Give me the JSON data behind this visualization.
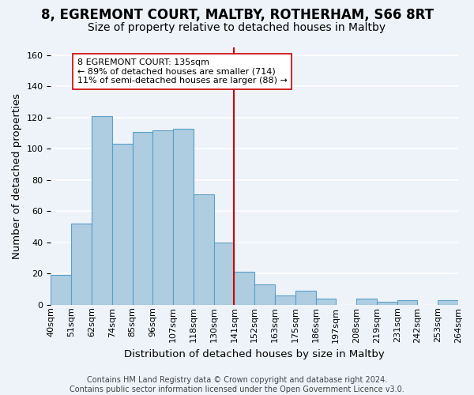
{
  "title": "8, EGREMONT COURT, MALTBY, ROTHERHAM, S66 8RT",
  "subtitle": "Size of property relative to detached houses in Maltby",
  "xlabel": "Distribution of detached houses by size in Maltby",
  "ylabel": "Number of detached properties",
  "bar_labels": [
    "40sqm",
    "51sqm",
    "62sqm",
    "74sqm",
    "85sqm",
    "96sqm",
    "107sqm",
    "118sqm",
    "130sqm",
    "141sqm",
    "152sqm",
    "163sqm",
    "175sqm",
    "186sqm",
    "197sqm",
    "208sqm",
    "219sqm",
    "231sqm",
    "242sqm",
    "253sqm",
    "264sqm"
  ],
  "bar_heights": [
    19,
    52,
    121,
    103,
    111,
    112,
    113,
    71,
    40,
    21,
    13,
    6,
    9,
    4,
    0,
    4,
    2,
    3,
    0,
    3
  ],
  "bar_color": "#aecde1",
  "bar_edge_color": "#5b9ec9",
  "vline_x": 9,
  "vline_color": "#cc0000",
  "annotation_text": "8 EGREMONT COURT: 135sqm\n← 89% of detached houses are smaller (714)\n11% of semi-detached houses are larger (88) →",
  "annotation_box_edge": "#cc0000",
  "ylim": [
    0,
    165
  ],
  "yticks": [
    0,
    20,
    40,
    60,
    80,
    100,
    120,
    140,
    160
  ],
  "footer": "Contains HM Land Registry data © Crown copyright and database right 2024.\nContains public sector information licensed under the Open Government Licence v3.0.",
  "background_color": "#eef3fa",
  "grid_color": "#ffffff",
  "title_fontsize": 12,
  "subtitle_fontsize": 10,
  "axis_label_fontsize": 9.5,
  "tick_fontsize": 8,
  "footer_fontsize": 7
}
